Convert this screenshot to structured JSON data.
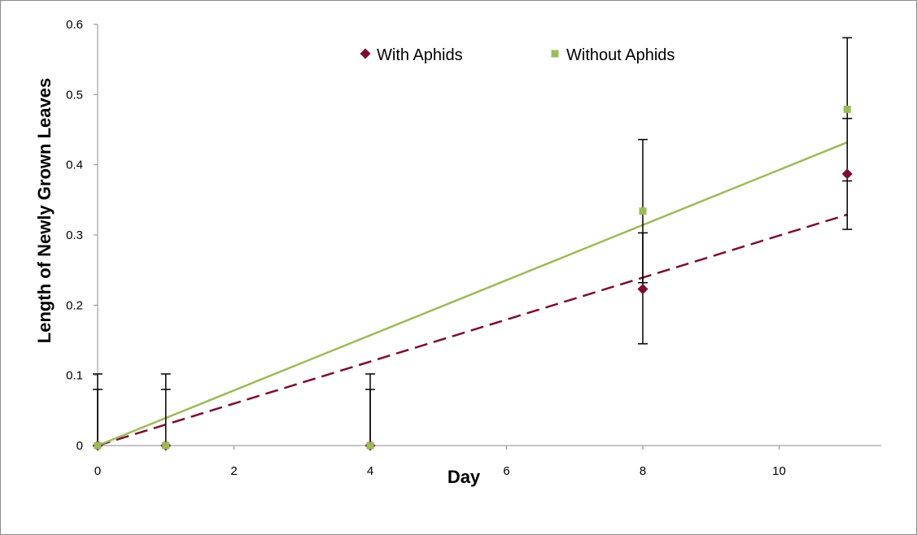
{
  "chart_data": {
    "type": "scatter",
    "title": "",
    "xlabel": "Day",
    "ylabel": "Length of Newly Grown Leaves",
    "xlim": [
      0,
      11.5
    ],
    "ylim": [
      0,
      0.6
    ],
    "x_ticks": [
      "0",
      "2",
      "4",
      "6",
      "8",
      "10"
    ],
    "y_ticks": [
      "0",
      "0.1",
      "0.2",
      "0.3",
      "0.4",
      "0.5",
      "0.6"
    ],
    "grid": false,
    "legend_position": "top-center",
    "series": [
      {
        "name": "With Aphids",
        "marker": "diamond",
        "color": "#7b0e2f",
        "points": [
          {
            "x": 0,
            "y": 0,
            "err_low": 0,
            "err_high": 0.08
          },
          {
            "x": 1,
            "y": 0,
            "err_low": 0,
            "err_high": 0.08
          },
          {
            "x": 4,
            "y": 0,
            "err_low": 0,
            "err_high": 0.08
          },
          {
            "x": 8,
            "y": 0.223,
            "err_low": 0.078,
            "err_high": 0.08
          },
          {
            "x": 11,
            "y": 0.387,
            "err_low": 0.079,
            "err_high": 0.079
          }
        ],
        "trendline": {
          "style": "dashed",
          "x": [
            0,
            11
          ],
          "y": [
            0,
            0.329
          ]
        }
      },
      {
        "name": "Without Aphids",
        "marker": "square",
        "color": "#9bbb59",
        "points": [
          {
            "x": 0,
            "y": 0,
            "err_low": 0,
            "err_high": 0.102
          },
          {
            "x": 1,
            "y": 0,
            "err_low": 0,
            "err_high": 0.102
          },
          {
            "x": 4,
            "y": 0,
            "err_low": 0,
            "err_high": 0.102
          },
          {
            "x": 8,
            "y": 0.334,
            "err_low": 0.102,
            "err_high": 0.102
          },
          {
            "x": 11,
            "y": 0.479,
            "err_low": 0.102,
            "err_high": 0.102
          }
        ],
        "trendline": {
          "style": "solid",
          "x": [
            0,
            11
          ],
          "y": [
            0,
            0.432
          ]
        }
      }
    ]
  }
}
